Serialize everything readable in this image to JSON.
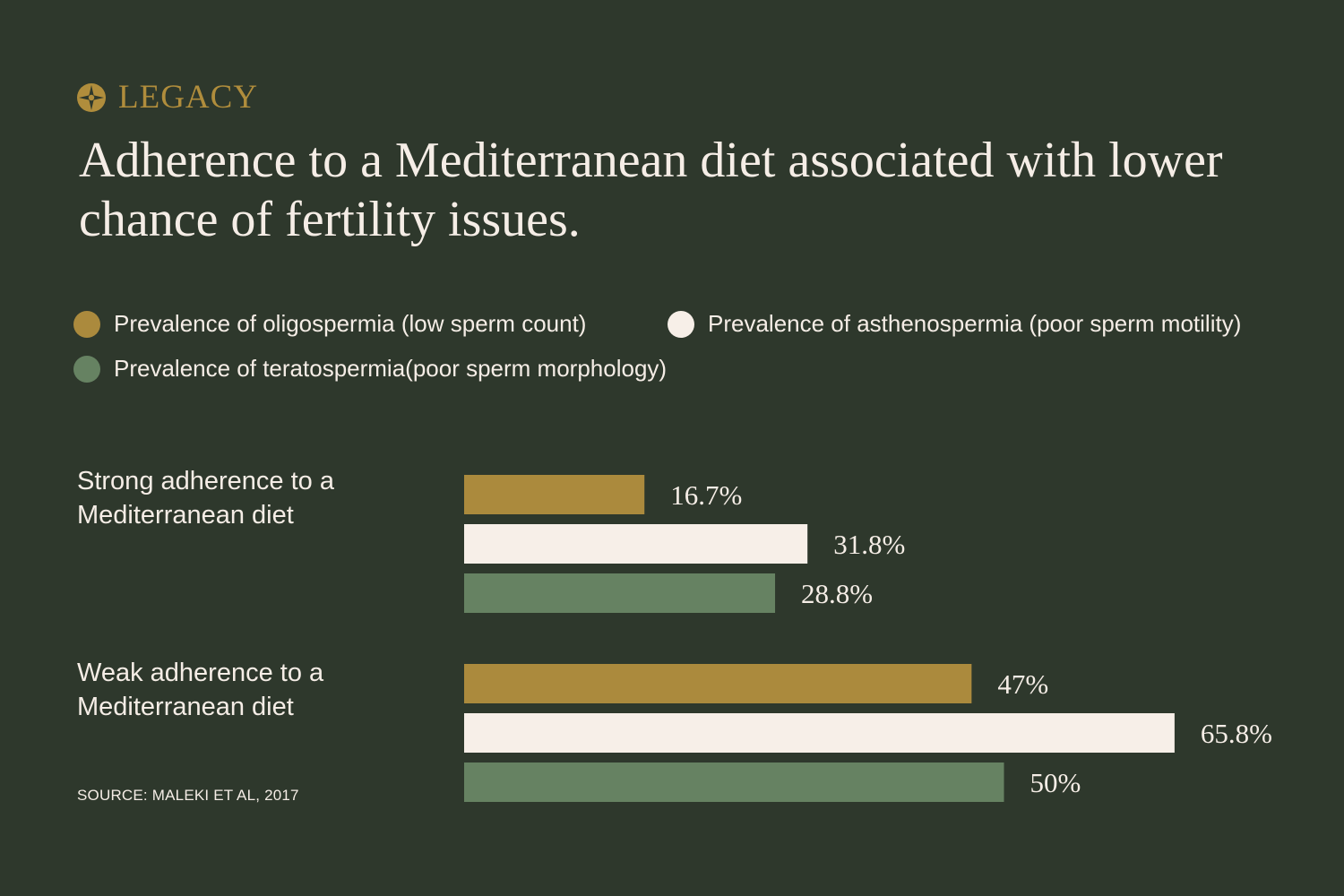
{
  "brand": {
    "name": "LEGACY",
    "icon": "compass-star-icon",
    "color": "#b08d3c"
  },
  "title": "Adherence to a Mediterranean diet associated with lower chance of fertility issues.",
  "source": "SOURCE: MALEKI ET AL, 2017",
  "colors": {
    "background": "#2e382c",
    "text": "#f5ede6"
  },
  "chart_data": {
    "type": "bar",
    "orientation": "horizontal",
    "categories": [
      "Strong adherence to a Mediterranean diet",
      "Weak adherence to a Mediterranean diet"
    ],
    "series": [
      {
        "name": "Prevalence of oligospermia (low sperm count)",
        "color": "#ab8a3d",
        "values": [
          16.7,
          47
        ],
        "labels": [
          "16.7%",
          "47%"
        ]
      },
      {
        "name": "Prevalence of asthenospermia (poor sperm motility)",
        "color": "#f7efe8",
        "values": [
          31.8,
          65.8
        ],
        "labels": [
          "31.8%",
          "65.8%"
        ]
      },
      {
        "name": "Prevalence of teratospermia(poor sperm morphology)",
        "color": "#668262",
        "values": [
          28.8,
          50
        ],
        "labels": [
          "28.8%",
          "50%"
        ]
      }
    ],
    "unit": "%",
    "xlim": [
      0,
      100
    ],
    "grid": false,
    "axes_visible": false,
    "legend_position": "top"
  }
}
